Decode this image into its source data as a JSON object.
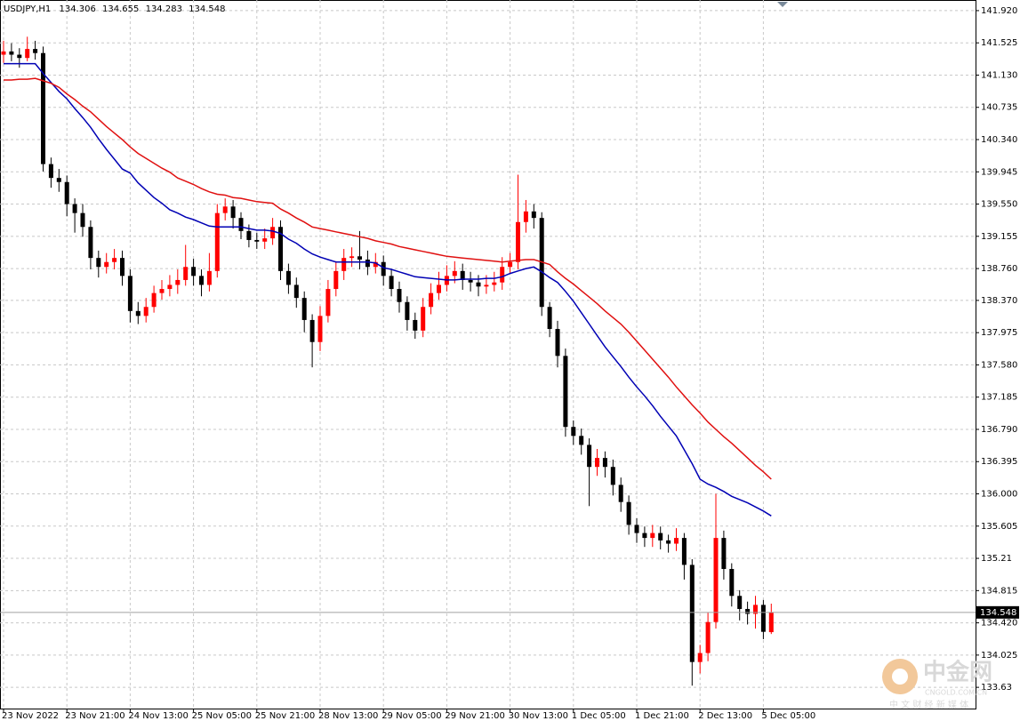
{
  "chart_data": {
    "type": "candlestick",
    "title": "USDJPY,H1",
    "categories": [
      "23 Nov 2022",
      null,
      null,
      null,
      null,
      null,
      null,
      null,
      "23 Nov 21:00",
      null,
      null,
      null,
      null,
      null,
      null,
      null,
      "24 Nov 13:00",
      null,
      null,
      null,
      null,
      null,
      null,
      null,
      "25 Nov 05:00",
      null,
      null,
      null,
      null,
      null,
      null,
      null,
      "25 Nov 21:00",
      null,
      null,
      null,
      null,
      null,
      null,
      null,
      "28 Nov 13:00",
      null,
      null,
      null,
      null,
      null,
      null,
      null,
      "29 Nov 05:00",
      null,
      null,
      null,
      null,
      null,
      null,
      null,
      "29 Nov 21:00",
      null,
      null,
      null,
      null,
      null,
      null,
      null,
      "30 Nov 13:00",
      null,
      null,
      null,
      null,
      null,
      null,
      null,
      "1 Dec 05:00",
      null,
      null,
      null,
      null,
      null,
      null,
      null,
      "1 Dec 21:00",
      null,
      null,
      null,
      null,
      null,
      null,
      null,
      "2 Dec 13:00",
      null,
      null,
      null,
      null,
      null,
      null,
      null,
      "5 Dec 05:00",
      null
    ],
    "open": [
      141.38,
      141.42,
      141.38,
      141.34,
      141.45,
      141.4,
      140.04,
      139.87,
      139.82,
      139.55,
      139.44,
      139.27,
      138.89,
      138.78,
      138.84,
      138.89,
      138.67,
      138.24,
      138.18,
      138.29,
      138.46,
      138.51,
      138.56,
      138.62,
      138.78,
      138.67,
      138.56,
      138.73,
      139.44,
      139.52,
      139.38,
      139.22,
      139.11,
      139.09,
      139.13,
      139.27,
      138.73,
      138.56,
      138.4,
      138.13,
      137.86,
      138.18,
      138.51,
      138.73,
      138.89,
      138.91,
      138.87,
      138.78,
      138.84,
      138.67,
      138.51,
      138.35,
      138.13,
      138.0,
      138.29,
      138.46,
      138.56,
      138.67,
      138.73,
      138.62,
      138.59,
      138.54,
      138.56,
      138.59,
      138.78,
      138.84,
      139.33,
      139.46,
      139.38,
      138.29,
      138.02,
      137.69,
      136.82,
      136.71,
      136.6,
      136.33,
      136.44,
      136.33,
      136.11,
      135.9,
      135.62,
      135.52,
      135.46,
      135.52,
      135.43,
      135.39,
      135.46,
      135.13,
      133.94,
      134.05,
      134.43,
      135.46,
      135.08,
      134.75,
      134.59,
      134.53,
      134.64,
      134.306
    ],
    "high": [
      141.55,
      141.52,
      141.46,
      141.6,
      141.55,
      141.48,
      140.12,
      139.98,
      139.9,
      139.62,
      139.55,
      139.35,
      138.98,
      138.95,
      139.0,
      138.98,
      138.75,
      138.35,
      138.4,
      138.55,
      138.62,
      138.68,
      138.75,
      139.05,
      138.88,
      138.75,
      138.95,
      139.55,
      139.62,
      139.6,
      139.45,
      139.3,
      139.2,
      139.25,
      139.38,
      139.35,
      138.82,
      138.65,
      138.48,
      138.2,
      138.3,
      138.62,
      138.85,
      139.0,
      139.02,
      139.22,
      138.98,
      138.95,
      138.92,
      138.75,
      138.6,
      138.42,
      138.22,
      138.4,
      138.58,
      138.72,
      138.8,
      138.85,
      138.82,
      138.72,
      138.68,
      138.68,
      138.72,
      138.9,
      138.95,
      139.91,
      139.6,
      139.55,
      139.45,
      138.35,
      138.12,
      137.78,
      136.9,
      136.8,
      136.68,
      136.55,
      136.52,
      136.42,
      136.2,
      135.98,
      135.7,
      135.6,
      135.62,
      135.6,
      135.5,
      135.58,
      135.52,
      135.2,
      134.15,
      134.55,
      136.0,
      135.55,
      135.15,
      134.82,
      134.68,
      134.75,
      134.7,
      134.655
    ],
    "low": [
      141.28,
      141.3,
      141.22,
      141.3,
      141.32,
      139.95,
      139.75,
      139.7,
      139.4,
      139.2,
      139.15,
      138.75,
      138.65,
      138.7,
      138.75,
      138.55,
      138.1,
      138.08,
      138.1,
      138.22,
      138.38,
      138.42,
      138.45,
      138.55,
      138.55,
      138.42,
      138.48,
      138.65,
      139.35,
      139.25,
      139.12,
      139.02,
      139.0,
      139.0,
      139.05,
      138.62,
      138.45,
      138.28,
      137.98,
      137.55,
      137.75,
      138.1,
      138.42,
      138.62,
      138.78,
      138.75,
      138.68,
      138.7,
      138.55,
      138.42,
      138.22,
      138.0,
      137.9,
      137.92,
      138.2,
      138.38,
      138.48,
      138.58,
      138.5,
      138.48,
      138.42,
      138.45,
      138.48,
      138.5,
      138.7,
      138.75,
      139.2,
      139.25,
      138.18,
      137.92,
      137.55,
      136.7,
      136.6,
      136.48,
      135.85,
      136.22,
      136.2,
      135.98,
      135.78,
      135.5,
      135.4,
      135.35,
      135.35,
      135.32,
      135.28,
      135.3,
      134.95,
      133.65,
      133.8,
      133.95,
      134.35,
      134.95,
      134.62,
      134.45,
      134.4,
      134.35,
      134.22,
      134.283
    ],
    "close": [
      141.42,
      141.38,
      141.34,
      141.45,
      141.4,
      140.04,
      139.87,
      139.82,
      139.55,
      139.44,
      139.27,
      138.89,
      138.78,
      138.84,
      138.89,
      138.67,
      138.24,
      138.18,
      138.29,
      138.46,
      138.51,
      138.56,
      138.62,
      138.78,
      138.67,
      138.56,
      138.73,
      139.44,
      139.52,
      139.38,
      139.22,
      139.11,
      139.09,
      139.13,
      139.27,
      138.73,
      138.56,
      138.4,
      138.13,
      137.86,
      138.18,
      138.51,
      138.73,
      138.89,
      138.91,
      138.87,
      138.78,
      138.84,
      138.67,
      138.51,
      138.35,
      138.13,
      138.0,
      138.29,
      138.46,
      138.56,
      138.67,
      138.73,
      138.62,
      138.59,
      138.54,
      138.56,
      138.59,
      138.78,
      138.84,
      139.33,
      139.46,
      139.38,
      138.29,
      138.02,
      137.69,
      136.82,
      136.71,
      136.6,
      136.33,
      136.44,
      136.33,
      136.11,
      135.9,
      135.62,
      135.52,
      135.46,
      135.52,
      135.43,
      135.39,
      135.46,
      135.13,
      133.94,
      134.05,
      134.43,
      135.46,
      135.08,
      134.75,
      134.59,
      134.53,
      134.64,
      134.31,
      134.548
    ],
    "up_color": "#ff0000",
    "down_color": "#000000",
    "series": [
      {
        "color": "#0000b4",
        "values": [
          141.27,
          141.27,
          141.27,
          141.27,
          141.27,
          141.15,
          141.04,
          140.93,
          140.84,
          140.72,
          140.61,
          140.49,
          140.35,
          140.22,
          140.1,
          139.98,
          139.93,
          139.81,
          139.72,
          139.63,
          139.56,
          139.48,
          139.44,
          139.39,
          139.36,
          139.32,
          139.28,
          139.27,
          139.27,
          139.27,
          139.27,
          139.25,
          139.23,
          139.23,
          139.22,
          139.19,
          139.12,
          139.07,
          139.0,
          138.94,
          138.9,
          138.87,
          138.84,
          138.84,
          138.84,
          138.84,
          138.84,
          138.83,
          138.77,
          138.75,
          138.72,
          138.69,
          138.66,
          138.65,
          138.64,
          138.63,
          138.62,
          138.62,
          138.63,
          138.63,
          138.63,
          138.64,
          138.64,
          138.66,
          138.7,
          138.73,
          138.76,
          138.78,
          138.72,
          138.65,
          138.59,
          138.48,
          138.36,
          138.22,
          138.08,
          137.94,
          137.8,
          137.68,
          137.56,
          137.43,
          137.31,
          137.2,
          137.08,
          136.95,
          136.83,
          136.71,
          136.54,
          136.37,
          136.18,
          136.12,
          136.08,
          136.03,
          135.97,
          135.93,
          135.89,
          135.84,
          135.79,
          135.73
        ]
      },
      {
        "color": "#e01010",
        "values": [
          141.07,
          141.07,
          141.08,
          141.08,
          141.09,
          141.06,
          141.03,
          140.98,
          140.9,
          140.83,
          140.75,
          140.68,
          140.59,
          140.5,
          140.42,
          140.34,
          140.25,
          140.17,
          140.11,
          140.05,
          139.99,
          139.94,
          139.87,
          139.83,
          139.79,
          139.74,
          139.7,
          139.67,
          139.66,
          139.63,
          139.62,
          139.6,
          139.58,
          139.57,
          139.56,
          139.49,
          139.44,
          139.38,
          139.33,
          139.27,
          139.25,
          139.23,
          139.21,
          139.19,
          139.17,
          139.15,
          139.13,
          139.1,
          139.08,
          139.06,
          139.03,
          139.01,
          138.99,
          138.97,
          138.95,
          138.93,
          138.91,
          138.9,
          138.89,
          138.88,
          138.87,
          138.86,
          138.85,
          138.84,
          138.85,
          138.86,
          138.87,
          138.87,
          138.84,
          138.81,
          138.72,
          138.64,
          138.57,
          138.49,
          138.41,
          138.33,
          138.24,
          138.16,
          138.08,
          137.98,
          137.87,
          137.76,
          137.65,
          137.54,
          137.43,
          137.31,
          137.2,
          137.09,
          136.99,
          136.88,
          136.79,
          136.7,
          136.62,
          136.53,
          136.44,
          136.35,
          136.27,
          136.18
        ]
      }
    ],
    "ylim": [
      133.37,
      142.05
    ],
    "yticks": [
      {
        "value": 141.92,
        "label": "141.920"
      },
      141.525,
      {
        "value": 141.13,
        "label": "141.130"
      },
      140.735,
      {
        "value": 140.34,
        "label": "140.340"
      },
      139.945,
      {
        "value": 139.55,
        "label": "139.550"
      },
      139.155,
      {
        "value": 138.76,
        "label": "138.760"
      },
      {
        "value": 138.37,
        "label": "138.370"
      },
      137.975,
      {
        "value": 137.58,
        "label": "137.580"
      },
      137.185,
      {
        "value": 136.79,
        "label": "136.790"
      },
      136.395,
      {
        "value": 136.0,
        "label": "136.000"
      },
      135.605,
      135.21,
      134.815,
      {
        "value": 134.42,
        "label": "134.420"
      },
      134.025,
      133.63
    ],
    "grid": true,
    "annotations": [
      "中金网",
      "CNGOLD.COM.CN",
      "中 文 财 经 新 媒 体"
    ]
  }
}
